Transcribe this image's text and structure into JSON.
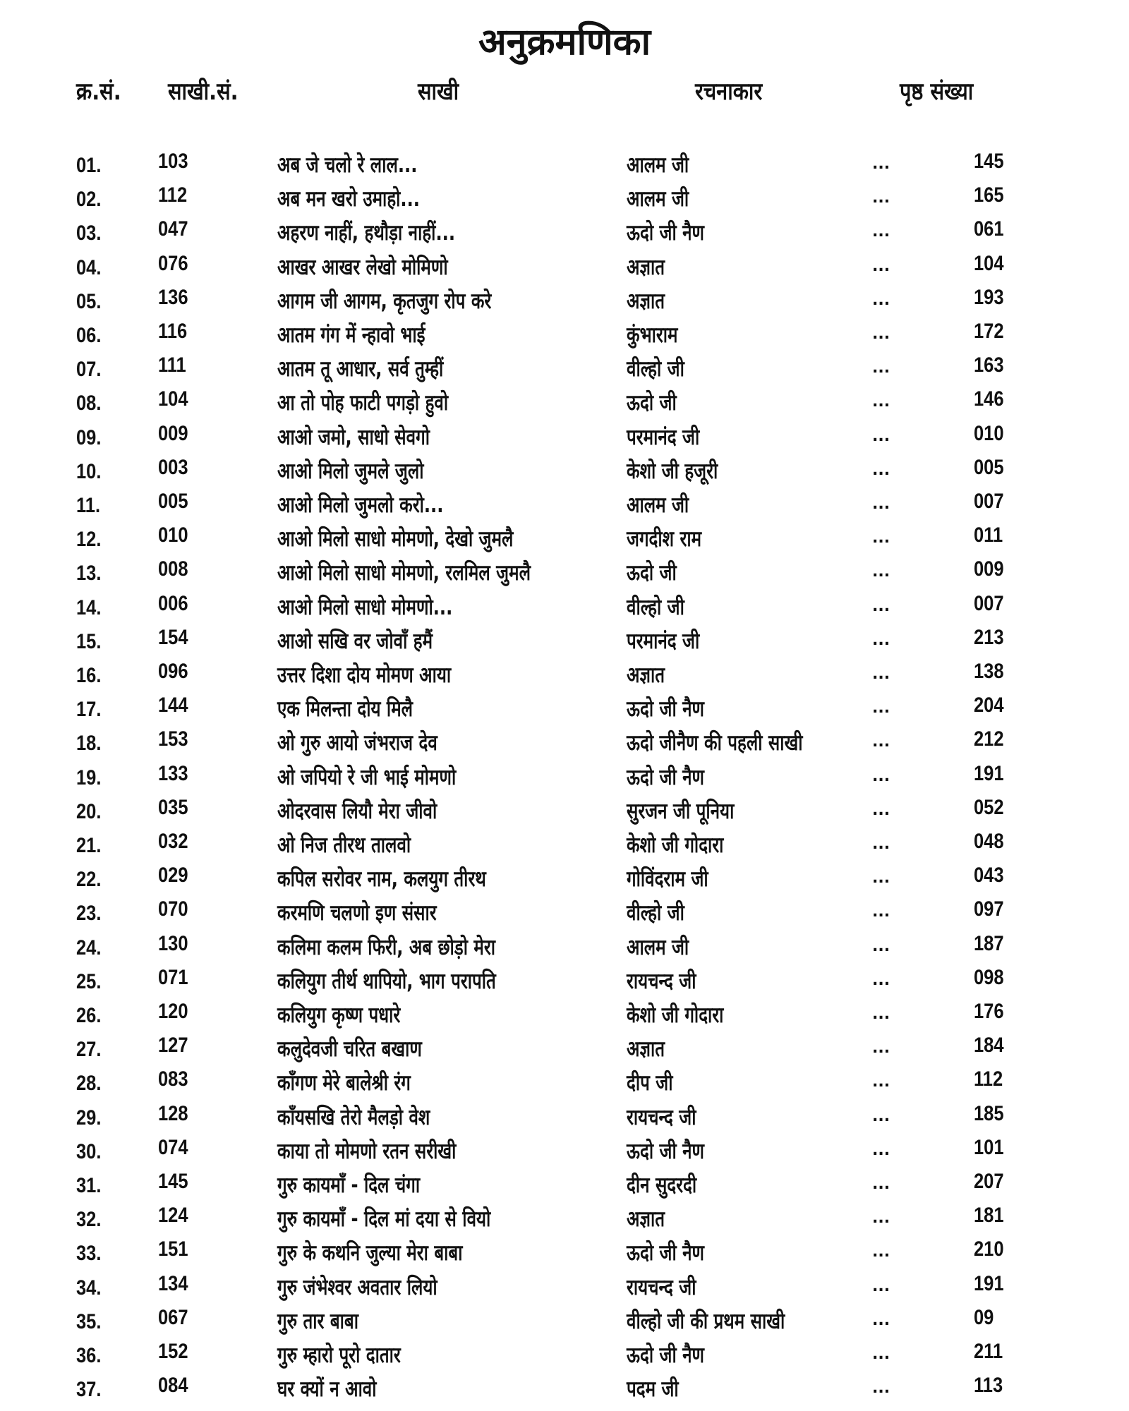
{
  "title": "अनुक्रमणिका",
  "headers": {
    "serial": "क्र.सं.",
    "sakhi_no": "साखी.सं.",
    "sakhi": "साखी",
    "author": "रचनाकार",
    "page": "पृष्ठ संख्या"
  },
  "rows": [
    {
      "no": "01.",
      "sno": "103",
      "title": "अब जे चलो रे लाल...",
      "author": "आलम जी",
      "dots": "...",
      "page": "145"
    },
    {
      "no": "02.",
      "sno": "112",
      "title": "अब मन खरो उमाहो...",
      "author": "आलम जी",
      "dots": "...",
      "page": "165"
    },
    {
      "no": "03.",
      "sno": "047",
      "title": "अहरण नाहीं, हथौड़ा नाहीं...",
      "author": "ऊदो जी नैण",
      "dots": "...",
      "page": "061"
    },
    {
      "no": "04.",
      "sno": "076",
      "title": "आखर आखर लेखो मोमिणो",
      "author": "अज्ञात",
      "dots": "...",
      "page": "104"
    },
    {
      "no": "05.",
      "sno": "136",
      "title": "आगम जी आगम, कृतजुग रोप करे",
      "author": "अज्ञात",
      "dots": "...",
      "page": "193"
    },
    {
      "no": "06.",
      "sno": "116",
      "title": "आतम गंग में न्हावो भाई",
      "author": "कुंभाराम",
      "dots": "...",
      "page": "172"
    },
    {
      "no": "07.",
      "sno": "111",
      "title": "आतम तू आधार, सर्व तुम्हीं",
      "author": "वील्हो जी",
      "dots": "...",
      "page": "163"
    },
    {
      "no": "08.",
      "sno": "104",
      "title": "आ तो पोह फाटी पगड़ो हुवो",
      "author": "ऊदो जी",
      "dots": "...",
      "page": "146"
    },
    {
      "no": "09.",
      "sno": "009",
      "title": "आओ जमो, साधो सेवगो",
      "author": "परमानंद जी",
      "dots": "...",
      "page": "010"
    },
    {
      "no": "10.",
      "sno": "003",
      "title": "आओ मिलो जुमले जुलो",
      "author": "केशो जी हजूरी",
      "dots": "...",
      "page": "005"
    },
    {
      "no": "11.",
      "sno": "005",
      "title": "आओ मिलो जुमलो करो...",
      "author": "आलम जी",
      "dots": "...",
      "page": "007"
    },
    {
      "no": "12.",
      "sno": "010",
      "title": "आओ मिलो साधो मोमणो, देखो जुमलै",
      "author": "जगदीश राम",
      "dots": "...",
      "page": "011"
    },
    {
      "no": "13.",
      "sno": "008",
      "title": "आओ मिलो साधो मोमणो, रलमिल जुमलै",
      "author": "ऊदो जी",
      "dots": "...",
      "page": "009"
    },
    {
      "no": "14.",
      "sno": "006",
      "title": "आओ मिलो साधो मोमणो...",
      "author": "वील्हो जी",
      "dots": "...",
      "page": "007"
    },
    {
      "no": "15.",
      "sno": "154",
      "title": "आओ सखि वर जोवाँ हमैं",
      "author": "परमानंद जी",
      "dots": "...",
      "page": "213"
    },
    {
      "no": "16.",
      "sno": "096",
      "title": "उत्तर दिशा दोय मोमण आया",
      "author": "अज्ञात",
      "dots": "...",
      "page": "138"
    },
    {
      "no": "17.",
      "sno": "144",
      "title": "एक मिलन्ता दोय मिलै",
      "author": "ऊदो जी नैण",
      "dots": "...",
      "page": "204"
    },
    {
      "no": "18.",
      "sno": "153",
      "title": "ओ गुरु आयो जंभराज देव",
      "author": "ऊदो जीनैण की पहली साखी",
      "dots": "...",
      "page": "212"
    },
    {
      "no": "19.",
      "sno": "133",
      "title": "ओ जपियो रे जी भाई मोमणो",
      "author": "ऊदो जी नैण",
      "dots": "...",
      "page": "191"
    },
    {
      "no": "20.",
      "sno": "035",
      "title": "ओदरवास लियौ मेरा जीवो",
      "author": "सुरजन जी पूनिया",
      "dots": "...",
      "page": "052"
    },
    {
      "no": "21.",
      "sno": "032",
      "title": "ओ निज तीरथ तालवो",
      "author": "केशो जी गोदारा",
      "dots": "...",
      "page": "048"
    },
    {
      "no": "22.",
      "sno": "029",
      "title": "कपिल सरोवर नाम, कलयुग तीरथ",
      "author": "गोविंदराम जी",
      "dots": "...",
      "page": "043"
    },
    {
      "no": "23.",
      "sno": "070",
      "title": "करमणि चलणो इण संसार",
      "author": "वील्हो जी",
      "dots": "...",
      "page": "097"
    },
    {
      "no": "24.",
      "sno": "130",
      "title": "कलिमा कलम फिरी, अब छोड़ो मेरा",
      "author": "आलम जी",
      "dots": "...",
      "page": "187"
    },
    {
      "no": "25.",
      "sno": "071",
      "title": "कलियुग तीर्थ थापियो, भाग परापति",
      "author": "रायचन्द जी",
      "dots": "...",
      "page": "098"
    },
    {
      "no": "26.",
      "sno": "120",
      "title": "कलियुग कृष्ण पधारे",
      "author": "केशो जी गोदारा",
      "dots": "...",
      "page": "176"
    },
    {
      "no": "27.",
      "sno": "127",
      "title": "कलुदेवजी चरित बखाण",
      "author": "अज्ञात",
      "dots": "...",
      "page": "184"
    },
    {
      "no": "28.",
      "sno": "083",
      "title": "काँगण मेरे बालेश्री रंग",
      "author": "दीप जी",
      "dots": "...",
      "page": "112"
    },
    {
      "no": "29.",
      "sno": "128",
      "title": "काँयसखि तेरो मैलड़ो वेश",
      "author": "रायचन्द जी",
      "dots": "...",
      "page": "185"
    },
    {
      "no": "30.",
      "sno": "074",
      "title": "काया तो मोमणो रतन सरीखी",
      "author": "ऊदो जी नैण",
      "dots": "...",
      "page": "101"
    },
    {
      "no": "31.",
      "sno": "145",
      "title": "गुरु कायमाँ - दिल चंगा",
      "author": "दीन सुदरदी",
      "dots": "...",
      "page": "207"
    },
    {
      "no": "32.",
      "sno": "124",
      "title": "गुरु कायमाँ - दिल मां दया से वियो",
      "author": "अज्ञात",
      "dots": "...",
      "page": "181"
    },
    {
      "no": "33.",
      "sno": "151",
      "title": "गुरु के कथनि जुल्या मेरा बाबा",
      "author": "ऊदो जी नैण",
      "dots": "...",
      "page": "210"
    },
    {
      "no": "34.",
      "sno": "134",
      "title": "गुरु जंभेश्वर अवतार लियो",
      "author": "रायचन्द जी",
      "dots": "...",
      "page": "191"
    },
    {
      "no": "35.",
      "sno": "067",
      "title": "गुरु तार बाबा",
      "author": "वील्हो जी की प्रथम साखी",
      "dots": "...",
      "page": "09"
    },
    {
      "no": "36.",
      "sno": "152",
      "title": "गुरु म्हारो पूरो दातार",
      "author": "ऊदो जी नैण",
      "dots": "...",
      "page": "211"
    },
    {
      "no": "37.",
      "sno": "084",
      "title": "घर क्यों न आवो",
      "author": "पदम जी",
      "dots": "...",
      "page": "113"
    }
  ]
}
